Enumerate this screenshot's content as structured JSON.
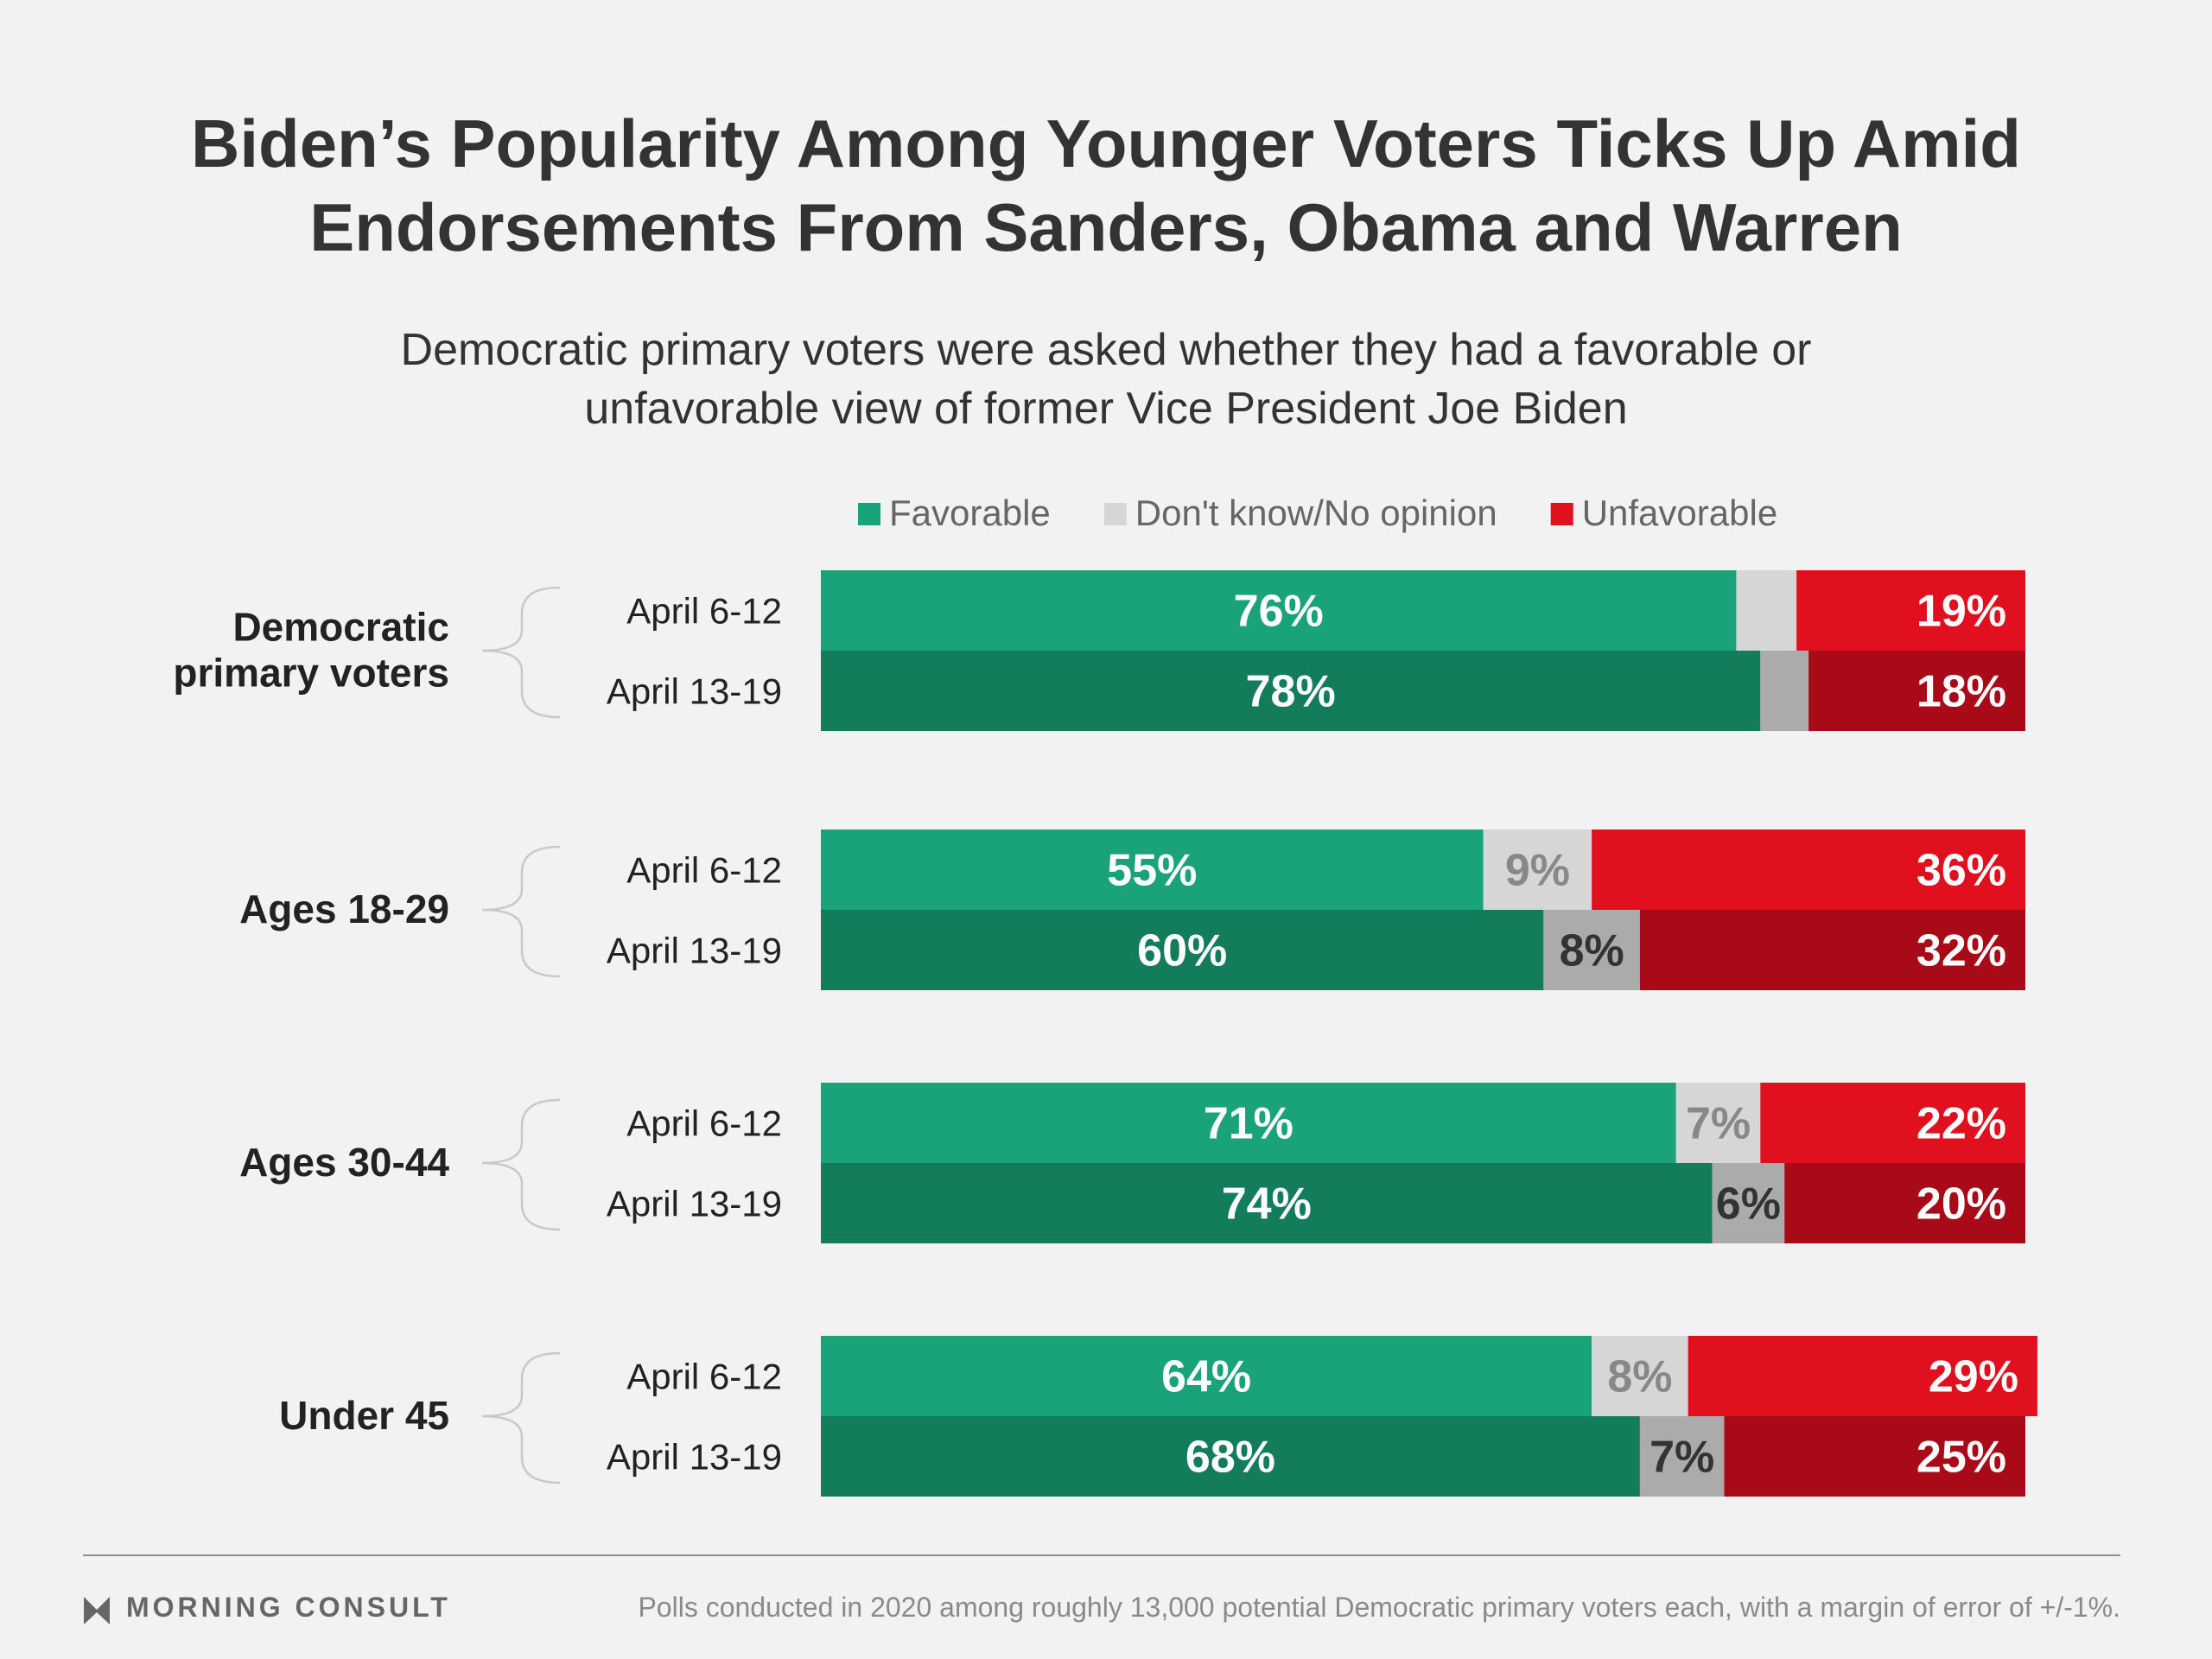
{
  "title_lines": [
    "Biden’s Popularity Among Younger Voters Ticks Up Amid",
    "Endorsements From Sanders, Obama and Warren"
  ],
  "subtitle_lines": [
    "Democratic primary voters were asked whether they had a favorable or",
    "unfavorable view of former Vice President Joe Biden"
  ],
  "legend": [
    {
      "label": "Favorable",
      "color": "#1aa37a"
    },
    {
      "label": "Don't know/No opinion",
      "color": "#d6d6d6"
    },
    {
      "label": "Unfavorable",
      "color": "#e0101f"
    }
  ],
  "colors": {
    "favorable_1": "#1aa37a",
    "favorable_2": "#137c5a",
    "dk_1": "#d6d6d6",
    "dk_2": "#ababab",
    "unfav_1": "#e0101f",
    "unfav_2": "#a80a17",
    "dk_text_1": "#888888",
    "dk_text_2": "#333333"
  },
  "footer": {
    "logo": "MORNING CONSULT",
    "note": "Polls conducted in 2020 among roughly 13,000 potential Democratic primary voters each, with a margin of error of +/-1%."
  },
  "chart_data": {
    "type": "bar",
    "orientation": "horizontal",
    "stacked": true,
    "unit": "%",
    "xlim": [
      0,
      100
    ],
    "segment_order": [
      "Favorable",
      "Don't know/No opinion",
      "Unfavorable"
    ],
    "groups": [
      {
        "label_lines": [
          "Democratic",
          "primary voters"
        ],
        "rows": [
          {
            "period": "April 6-12",
            "favorable": 76,
            "dont_know": 5,
            "unfavorable": 19,
            "labels": [
              "76%",
              "",
              "19%"
            ]
          },
          {
            "period": "April 13-19",
            "favorable": 78,
            "dont_know": 4,
            "unfavorable": 18,
            "labels": [
              "78%",
              "",
              "18%"
            ]
          }
        ]
      },
      {
        "label_lines": [
          "Ages 18-29"
        ],
        "rows": [
          {
            "period": "April 6-12",
            "favorable": 55,
            "dont_know": 9,
            "unfavorable": 36,
            "labels": [
              "55%",
              "9%",
              "36%"
            ]
          },
          {
            "period": "April 13-19",
            "favorable": 60,
            "dont_know": 8,
            "unfavorable": 32,
            "labels": [
              "60%",
              "8%",
              "32%"
            ]
          }
        ]
      },
      {
        "label_lines": [
          "Ages 30-44"
        ],
        "rows": [
          {
            "period": "April 6-12",
            "favorable": 71,
            "dont_know": 7,
            "unfavorable": 22,
            "labels": [
              "71%",
              "7%",
              "22%"
            ]
          },
          {
            "period": "April 13-19",
            "favorable": 74,
            "dont_know": 6,
            "unfavorable": 20,
            "labels": [
              "74%",
              "6%",
              "20%"
            ]
          }
        ]
      },
      {
        "label_lines": [
          "Under 45"
        ],
        "rows": [
          {
            "period": "April 6-12",
            "favorable": 64,
            "dont_know": 8,
            "unfavorable": 29,
            "labels": [
              "64%",
              "8%",
              "29%"
            ]
          },
          {
            "period": "April 13-19",
            "favorable": 68,
            "dont_know": 7,
            "unfavorable": 25,
            "labels": [
              "68%",
              "7%",
              "25%"
            ]
          }
        ]
      }
    ]
  }
}
